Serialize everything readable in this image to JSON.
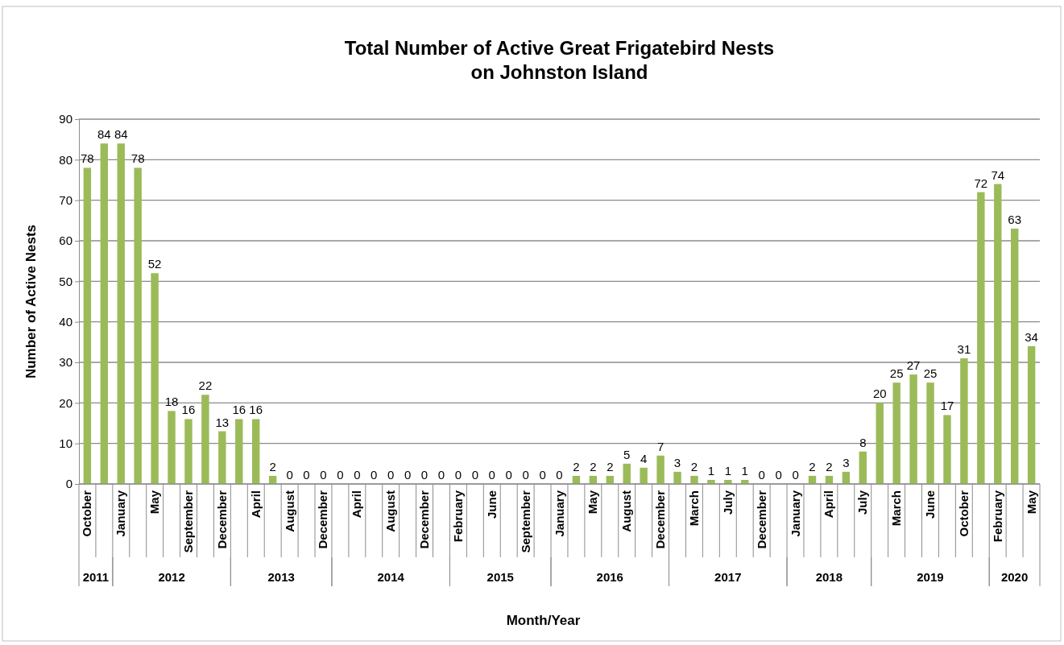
{
  "chart_data": {
    "type": "bar",
    "title": "Total Number of Active Great Frigatebird Nests\non Johnston Island",
    "xlabel": "Month/Year",
    "ylabel": "Number of Active Nests",
    "categories": [
      "October",
      null,
      "January",
      null,
      "May",
      null,
      "September",
      null,
      "December",
      null,
      "April",
      null,
      "August",
      null,
      "December",
      null,
      "April",
      null,
      "August",
      null,
      "December",
      null,
      "February",
      null,
      "June",
      null,
      "September",
      null,
      "January",
      null,
      "May",
      null,
      "August",
      null,
      "December",
      null,
      "March",
      null,
      "July",
      null,
      "December",
      null,
      "January",
      null,
      "April",
      null,
      "July",
      null,
      "March",
      null,
      "June",
      null,
      "October",
      null,
      "February",
      null,
      "May"
    ],
    "values": [
      78,
      84,
      84,
      78,
      52,
      18,
      16,
      22,
      13,
      16,
      16,
      2,
      0,
      0,
      0,
      0,
      0,
      0,
      0,
      0,
      0,
      0,
      0,
      0,
      0,
      0,
      0,
      0,
      0,
      2,
      2,
      2,
      5,
      4,
      7,
      3,
      2,
      1,
      1,
      1,
      0,
      0,
      0,
      2,
      2,
      3,
      8,
      20,
      25,
      27,
      25,
      17,
      31,
      72,
      74,
      63,
      34
    ],
    "color": "#9bbb59",
    "ylim": [
      0,
      90
    ],
    "yticks": [
      0,
      10,
      20,
      30,
      40,
      50,
      60,
      70,
      80,
      90
    ],
    "grid": "y",
    "data_labels": true,
    "annotations": [
      "2011",
      "2012",
      "2013",
      "2014",
      "2015",
      "2016",
      "2017",
      "2018",
      "2019",
      "2020"
    ]
  }
}
